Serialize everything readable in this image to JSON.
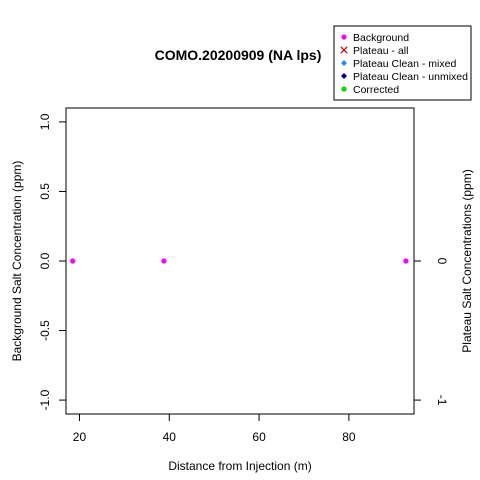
{
  "chart_data": {
    "type": "scatter",
    "title": "COMO.20200909 (NA lps)",
    "xlabel": "Distance from Injection (m)",
    "ylabel": "Background Salt Concentration (ppm)",
    "y2label": "Plateau Salt Concentrations (ppm)",
    "xlim": [
      17,
      94.5
    ],
    "ylim": [
      -1.1,
      1.1
    ],
    "xticks": [
      20,
      40,
      60,
      80
    ],
    "yticks": [
      -1.0,
      -0.5,
      0.0,
      0.5,
      1.0
    ],
    "ytick_labels": [
      "-1.0",
      "-0.5",
      "0.0",
      "0.5",
      "1.0"
    ],
    "y2ticks": [
      -1,
      0
    ],
    "y2tick_labels": [
      "-1",
      "0"
    ],
    "grid": false,
    "legend_position": "top-right",
    "legend": [
      {
        "label": "Background",
        "color": "#ff00ff",
        "marker": "dot"
      },
      {
        "label": "Plateau - all",
        "color": "#cc0000",
        "marker": "x"
      },
      {
        "label": "Plateau Clean - mixed",
        "color": "#1e90ff",
        "marker": "diamond"
      },
      {
        "label": "Plateau Clean - unmixed",
        "color": "#000080",
        "marker": "diamond"
      },
      {
        "label": "Corrected",
        "color": "#00dd00",
        "marker": "dot"
      }
    ],
    "series": [
      {
        "name": "Background",
        "color": "#ff00ff",
        "x": [
          18.5,
          38.8,
          92.7
        ],
        "y": [
          0,
          0,
          0
        ]
      }
    ]
  }
}
